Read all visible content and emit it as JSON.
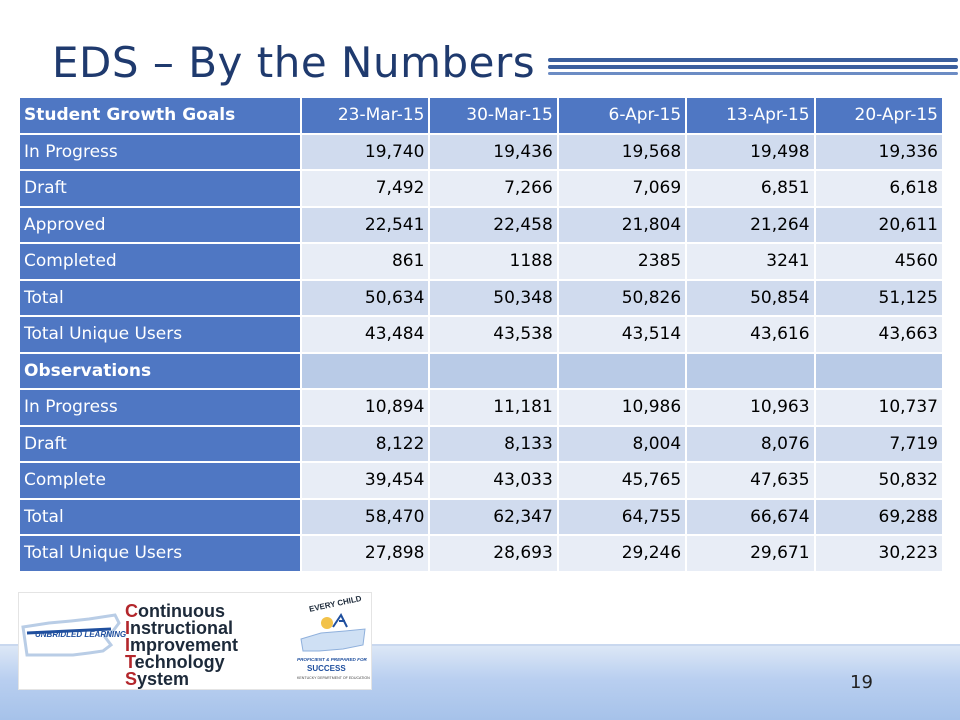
{
  "slide": {
    "title": "EDS – By the Numbers",
    "page_number": "19"
  },
  "table": {
    "columns": [
      "Student Growth Goals",
      "23-Mar-15",
      "30-Mar-15",
      "6-Apr-15",
      "13-Apr-15",
      "20-Apr-15"
    ],
    "rows": [
      {
        "label": "In Progress",
        "values": [
          "19,740",
          "19,436",
          "19,568",
          "19,498",
          "19,336"
        ]
      },
      {
        "label": "Draft",
        "values": [
          "7,492",
          "7,266",
          "7,069",
          "6,851",
          "6,618"
        ]
      },
      {
        "label": "Approved",
        "values": [
          "22,541",
          "22,458",
          "21,804",
          "21,264",
          "20,611"
        ]
      },
      {
        "label": "Completed",
        "values": [
          "861",
          "1188",
          "2385",
          "3241",
          "4560"
        ]
      },
      {
        "label": "Total",
        "values": [
          "50,634",
          "50,348",
          "50,826",
          "50,854",
          "51,125"
        ]
      },
      {
        "label": "Total Unique Users",
        "values": [
          "43,484",
          "43,538",
          "43,514",
          "43,616",
          "43,663"
        ]
      },
      {
        "label": "Observations",
        "values": [
          "",
          "",
          "",
          "",
          ""
        ]
      },
      {
        "label": "In Progress",
        "values": [
          "10,894",
          "11,181",
          "10,986",
          "10,963",
          "10,737"
        ]
      },
      {
        "label": "Draft",
        "values": [
          "8,122",
          "8,133",
          "8,004",
          "8,076",
          "7,719"
        ]
      },
      {
        "label": "Complete",
        "values": [
          "39,454",
          "43,033",
          "45,765",
          "47,635",
          "50,832"
        ]
      },
      {
        "label": "Total",
        "values": [
          "58,470",
          "62,347",
          "64,755",
          "66,674",
          "69,288"
        ]
      },
      {
        "label": "Total Unique Users",
        "values": [
          "27,898",
          "28,693",
          "29,246",
          "29,671",
          "30,223"
        ]
      }
    ]
  },
  "logo": {
    "badge": "UNBRIDLED LEARNING",
    "lines": [
      {
        "cap": "C",
        "rest": "ontinuous"
      },
      {
        "cap": "I",
        "rest": "nstructional"
      },
      {
        "cap": "I",
        "rest": "mprovement"
      },
      {
        "cap": "T",
        "rest": "echnology"
      },
      {
        "cap": "S",
        "rest": "ystem"
      }
    ],
    "every_child": "EVERY CHILD",
    "tagline": "PROFICIENT & PREPARED FOR",
    "success": "SUCCESS",
    "dept": "KENTUCKY DEPARTMENT OF EDUCATION"
  }
}
